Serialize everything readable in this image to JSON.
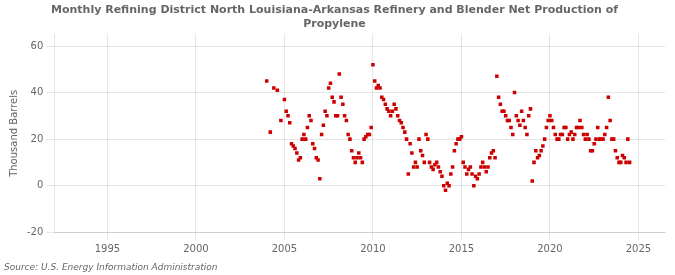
{
  "chart_data": {
    "type": "scatter",
    "title": "Monthly Refining District North Louisiana-Arkansas Refinery and Blender Net Production of\nPropylene",
    "y_label": "Thousand Barrels",
    "annotations": [
      "Source: U.S. Energy Information Administration"
    ],
    "color": "#cc0000",
    "marker": "square",
    "grid": true,
    "xlim": [
      1992.0,
      2026.5
    ],
    "ylim": [
      -20,
      65
    ],
    "xticks": [
      1995,
      2000,
      2005,
      2010,
      2015,
      2020,
      2025
    ],
    "yticks": [
      -20,
      0,
      20,
      40,
      60
    ],
    "x": [
      2004.0,
      2004.2,
      2004.4,
      2004.6,
      2004.8,
      2005.0,
      2005.1,
      2005.2,
      2005.3,
      2005.4,
      2005.5,
      2005.6,
      2005.7,
      2005.8,
      2005.9,
      2006.0,
      2006.1,
      2006.2,
      2006.3,
      2006.4,
      2006.5,
      2006.6,
      2006.7,
      2006.8,
      2006.9,
      2007.0,
      2007.1,
      2007.2,
      2007.3,
      2007.4,
      2007.5,
      2007.6,
      2007.7,
      2007.8,
      2007.9,
      2008.0,
      2008.1,
      2008.2,
      2008.3,
      2008.4,
      2008.5,
      2008.6,
      2008.7,
      2008.8,
      2008.9,
      2009.0,
      2009.1,
      2009.2,
      2009.3,
      2009.4,
      2009.5,
      2009.6,
      2009.7,
      2009.8,
      2009.9,
      2010.0,
      2010.1,
      2010.2,
      2010.3,
      2010.4,
      2010.5,
      2010.6,
      2010.7,
      2010.8,
      2010.9,
      2011.0,
      2011.1,
      2011.2,
      2011.3,
      2011.4,
      2011.5,
      2011.6,
      2011.7,
      2011.8,
      2011.9,
      2012.0,
      2012.1,
      2012.2,
      2012.3,
      2012.4,
      2012.5,
      2012.6,
      2012.7,
      2012.8,
      2012.9,
      2013.0,
      2013.1,
      2013.2,
      2013.3,
      2013.4,
      2013.5,
      2013.6,
      2013.7,
      2013.8,
      2013.9,
      2014.0,
      2014.1,
      2014.2,
      2014.3,
      2014.4,
      2014.5,
      2014.6,
      2014.7,
      2014.8,
      2014.9,
      2015.0,
      2015.1,
      2015.2,
      2015.3,
      2015.4,
      2015.5,
      2015.6,
      2015.7,
      2015.8,
      2015.9,
      2016.0,
      2016.1,
      2016.2,
      2016.3,
      2016.4,
      2016.5,
      2016.6,
      2016.7,
      2016.8,
      2016.9,
      2017.0,
      2017.1,
      2017.2,
      2017.3,
      2017.4,
      2017.5,
      2017.6,
      2017.7,
      2017.8,
      2017.9,
      2018.0,
      2018.1,
      2018.2,
      2018.3,
      2018.4,
      2018.5,
      2018.6,
      2018.7,
      2018.8,
      2018.9,
      2019.0,
      2019.1,
      2019.2,
      2019.3,
      2019.4,
      2019.5,
      2019.6,
      2019.7,
      2019.8,
      2019.9,
      2020.0,
      2020.1,
      2020.2,
      2020.3,
      2020.4,
      2020.5,
      2020.6,
      2020.7,
      2020.8,
      2020.9,
      2021.0,
      2021.1,
      2021.2,
      2021.3,
      2021.4,
      2021.5,
      2021.6,
      2021.7,
      2021.8,
      2021.9,
      2022.0,
      2022.1,
      2022.2,
      2022.3,
      2022.4,
      2022.5,
      2022.6,
      2022.7,
      2022.8,
      2022.9,
      2023.0,
      2023.1,
      2023.2,
      2023.3,
      2023.4,
      2023.5,
      2023.6,
      2023.7,
      2023.8,
      2023.9,
      2024.0,
      2024.1,
      2024.2,
      2024.3,
      2024.4,
      2024.5
    ],
    "values": [
      45.0,
      23.0,
      42.0,
      41.0,
      28.0,
      37.0,
      32.0,
      30.0,
      27.0,
      18.0,
      17.0,
      16.0,
      14.0,
      11.0,
      12.0,
      20.0,
      22.0,
      20.0,
      25.0,
      30.0,
      28.0,
      18.0,
      16.0,
      12.0,
      11.0,
      3.0,
      22.0,
      26.0,
      32.0,
      30.0,
      42.0,
      44.0,
      38.0,
      36.0,
      30.0,
      30.0,
      48.0,
      38.0,
      35.0,
      30.0,
      28.0,
      22.0,
      20.0,
      15.0,
      12.0,
      10.0,
      12.0,
      14.0,
      12.0,
      10.0,
      20.0,
      21.0,
      22.0,
      22.0,
      25.0,
      52.0,
      45.0,
      42.0,
      43.0,
      42.0,
      38.0,
      37.0,
      35.0,
      33.0,
      32.0,
      30.0,
      32.0,
      35.0,
      33.0,
      30.0,
      28.0,
      27.0,
      25.0,
      23.0,
      20.0,
      5.0,
      18.0,
      14.0,
      8.0,
      10.0,
      8.0,
      20.0,
      15.0,
      13.0,
      10.0,
      22.0,
      20.0,
      10.0,
      8.0,
      7.0,
      9.0,
      10.0,
      8.0,
      6.0,
      4.0,
      0.0,
      -2.0,
      1.0,
      0.0,
      5.0,
      8.0,
      15.0,
      18.0,
      20.0,
      20.0,
      21.0,
      10.0,
      8.0,
      5.0,
      7.0,
      8.0,
      5.0,
      0.0,
      4.0,
      3.0,
      5.0,
      8.0,
      10.0,
      8.0,
      6.0,
      8.0,
      12.0,
      14.0,
      15.0,
      12.0,
      47.0,
      38.0,
      35.0,
      32.0,
      32.0,
      30.0,
      28.0,
      28.0,
      25.0,
      22.0,
      40.0,
      30.0,
      28.0,
      26.0,
      32.0,
      28.0,
      25.0,
      22.0,
      30.0,
      33.0,
      2.0,
      10.0,
      15.0,
      12.0,
      13.0,
      15.0,
      17.0,
      20.0,
      25.0,
      28.0,
      30.0,
      28.0,
      25.0,
      22.0,
      20.0,
      20.0,
      22.0,
      22.0,
      25.0,
      25.0,
      20.0,
      22.0,
      23.0,
      20.0,
      22.0,
      25.0,
      25.0,
      28.0,
      25.0,
      22.0,
      20.0,
      22.0,
      20.0,
      15.0,
      15.0,
      18.0,
      20.0,
      25.0,
      20.0,
      20.0,
      20.0,
      22.0,
      25.0,
      38.0,
      28.0,
      20.0,
      20.0,
      15.0,
      12.0,
      10.0,
      10.0,
      13.0,
      12.0,
      10.0,
      20.0,
      10.0
    ]
  }
}
